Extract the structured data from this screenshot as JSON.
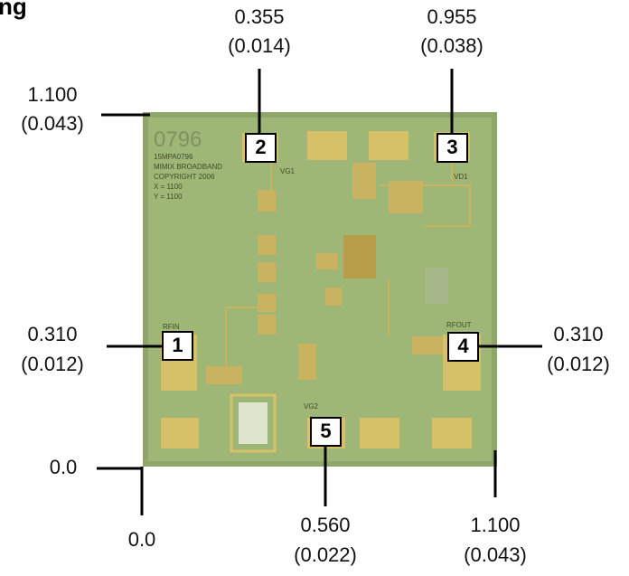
{
  "header": {
    "title": "ng"
  },
  "dimensions": {
    "top_left": {
      "mm": "0.355",
      "inch": "(0.014)"
    },
    "top_right": {
      "mm": "0.955",
      "inch": "(0.038)"
    },
    "left_top": {
      "mm": "1.100",
      "inch": "(0.043)"
    },
    "left_pad": {
      "mm": "0.310",
      "inch": "(0.012)"
    },
    "right_pad": {
      "mm": "0.310",
      "inch": "(0.012)"
    },
    "origin_y": {
      "mm": "0.0"
    },
    "origin_x": {
      "mm": "0.0"
    },
    "bottom_pad": {
      "mm": "0.560",
      "inch": "(0.022)"
    },
    "bottom_right": {
      "mm": "1.100",
      "inch": "(0.043)"
    }
  },
  "pads": [
    "1",
    "2",
    "3",
    "4",
    "5"
  ],
  "chip_markings": {
    "part": "0796",
    "lines": [
      "15MPA0796",
      "MIMIX BROADBAND",
      "COPYRIGHT 2006",
      "X = 1100",
      "Y = 1100"
    ],
    "vg1": "VG1",
    "vd1": "VD1",
    "rfin": "RFIN",
    "rfout": "RFOUT",
    "vg2": "VG2"
  }
}
